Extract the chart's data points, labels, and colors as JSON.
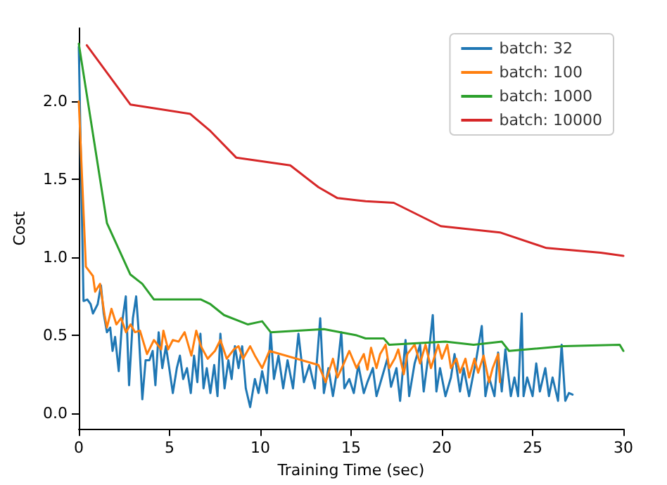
{
  "chart_data": {
    "type": "line",
    "xlabel": "Training Time (sec)",
    "ylabel": "Cost",
    "xlim": [
      0,
      30
    ],
    "ylim": [
      -0.1,
      2.47
    ],
    "xticks": [
      0,
      5,
      10,
      15,
      20,
      25,
      30
    ],
    "yticks": [
      {
        "value": 0,
        "label": "0.0"
      },
      {
        "value": 0.5,
        "label": "0.5"
      },
      {
        "value": 1,
        "label": "1.0"
      },
      {
        "value": 1.5,
        "label": "1.5"
      },
      {
        "value": 2,
        "label": "2.0"
      }
    ],
    "grid": false,
    "legend": "top right",
    "marker": "none",
    "line_style": "solid",
    "series": [
      {
        "name": "batch: 32",
        "color": "#1f77b4",
        "x": [
          0,
          0.26,
          0.47,
          0.65,
          0.78,
          1.04,
          1.22,
          1.37,
          1.55,
          1.73,
          1.86,
          2.0,
          2.2,
          2.38,
          2.59,
          2.77,
          2.98,
          3.16,
          3.3,
          3.5,
          3.68,
          3.89,
          4.07,
          4.22,
          4.4,
          4.6,
          4.8,
          4.97,
          5.18,
          5.4,
          5.57,
          5.75,
          5.96,
          6.17,
          6.35,
          6.53,
          6.7,
          6.87,
          7.05,
          7.25,
          7.46,
          7.64,
          7.8,
          8.03,
          8.24,
          8.42,
          8.6,
          8.8,
          9.0,
          9.2,
          9.44,
          9.7,
          9.9,
          10.1,
          10.36,
          10.57,
          10.75,
          11.0,
          11.26,
          11.5,
          11.8,
          12.1,
          12.4,
          12.7,
          13.0,
          13.3,
          13.5,
          13.75,
          14.0,
          14.25,
          14.46,
          14.63,
          14.9,
          15.15,
          15.4,
          15.7,
          15.9,
          16.2,
          16.4,
          16.7,
          17.0,
          17.2,
          17.5,
          17.7,
          18.0,
          18.2,
          18.5,
          18.8,
          19.0,
          19.3,
          19.5,
          19.7,
          19.9,
          20.2,
          20.5,
          20.7,
          21.0,
          21.2,
          21.5,
          21.7,
          21.9,
          22.2,
          22.4,
          22.6,
          22.9,
          23.1,
          23.3,
          23.5,
          23.8,
          24.0,
          24.2,
          24.4,
          24.5,
          24.7,
          25.0,
          25.2,
          25.4,
          25.7,
          25.9,
          26.1,
          26.4,
          26.6,
          26.8,
          27.0,
          27.2
        ],
        "values": [
          2.35,
          0.72,
          0.73,
          0.7,
          0.64,
          0.7,
          0.82,
          0.64,
          0.52,
          0.55,
          0.4,
          0.49,
          0.27,
          0.58,
          0.75,
          0.18,
          0.61,
          0.75,
          0.52,
          0.09,
          0.34,
          0.34,
          0.4,
          0.18,
          0.52,
          0.29,
          0.43,
          0.3,
          0.13,
          0.29,
          0.37,
          0.22,
          0.29,
          0.13,
          0.37,
          0.2,
          0.51,
          0.16,
          0.29,
          0.13,
          0.31,
          0.11,
          0.51,
          0.16,
          0.34,
          0.22,
          0.43,
          0.29,
          0.43,
          0.16,
          0.04,
          0.22,
          0.13,
          0.27,
          0.13,
          0.52,
          0.22,
          0.37,
          0.16,
          0.34,
          0.16,
          0.51,
          0.2,
          0.31,
          0.16,
          0.61,
          0.13,
          0.29,
          0.11,
          0.29,
          0.52,
          0.16,
          0.22,
          0.13,
          0.31,
          0.13,
          0.2,
          0.29,
          0.11,
          0.23,
          0.35,
          0.17,
          0.29,
          0.08,
          0.47,
          0.11,
          0.32,
          0.44,
          0.14,
          0.41,
          0.63,
          0.14,
          0.29,
          0.11,
          0.23,
          0.38,
          0.14,
          0.29,
          0.11,
          0.23,
          0.35,
          0.56,
          0.11,
          0.23,
          0.11,
          0.39,
          0.14,
          0.41,
          0.11,
          0.23,
          0.11,
          0.64,
          0.11,
          0.23,
          0.11,
          0.32,
          0.14,
          0.29,
          0.11,
          0.23,
          0.08,
          0.44,
          0.08,
          0.13,
          0.12
        ]
      },
      {
        "name": "batch: 100",
        "color": "#ff7f0e",
        "x": [
          0,
          0.39,
          0.78,
          0.9,
          1.17,
          1.42,
          1.55,
          1.8,
          2.07,
          2.33,
          2.6,
          2.85,
          3.1,
          3.37,
          3.76,
          4.14,
          4.54,
          4.66,
          4.92,
          5.18,
          5.5,
          5.83,
          6.2,
          6.47,
          6.73,
          7.1,
          7.5,
          7.8,
          8.15,
          8.54,
          8.8,
          9.05,
          9.44,
          9.7,
          10.1,
          10.5,
          13.2,
          13.6,
          14.0,
          14.25,
          14.6,
          14.9,
          15.3,
          15.7,
          15.9,
          16.1,
          16.4,
          16.6,
          16.9,
          17.1,
          17.4,
          17.6,
          17.9,
          18.1,
          18.5,
          18.8,
          19.1,
          19.4,
          19.8,
          20.0,
          20.3,
          20.5,
          20.8,
          21.0,
          21.3,
          21.5,
          21.8,
          22.0,
          22.3,
          22.6,
          22.8,
          23.1,
          23.2
        ],
        "values": [
          2.0,
          0.94,
          0.88,
          0.78,
          0.83,
          0.63,
          0.55,
          0.67,
          0.57,
          0.61,
          0.52,
          0.57,
          0.52,
          0.53,
          0.38,
          0.47,
          0.41,
          0.53,
          0.41,
          0.47,
          0.46,
          0.52,
          0.37,
          0.53,
          0.43,
          0.35,
          0.4,
          0.47,
          0.35,
          0.41,
          0.43,
          0.35,
          0.43,
          0.37,
          0.29,
          0.4,
          0.31,
          0.2,
          0.35,
          0.23,
          0.32,
          0.4,
          0.29,
          0.38,
          0.28,
          0.42,
          0.29,
          0.38,
          0.44,
          0.29,
          0.35,
          0.41,
          0.25,
          0.38,
          0.44,
          0.32,
          0.44,
          0.29,
          0.44,
          0.35,
          0.44,
          0.29,
          0.35,
          0.26,
          0.35,
          0.23,
          0.35,
          0.26,
          0.37,
          0.2,
          0.29,
          0.38,
          0.2
        ]
      },
      {
        "name": "batch: 1000",
        "color": "#2ca02c",
        "x": [
          0,
          1.55,
          2.84,
          3.5,
          4.14,
          6.73,
          7.25,
          8.0,
          9.32,
          10.1,
          10.57,
          13.5,
          15.3,
          15.8,
          16.8,
          17.1,
          20.2,
          21.75,
          23.3,
          23.7,
          26.7,
          29.8,
          30
        ],
        "values": [
          2.37,
          1.22,
          0.89,
          0.83,
          0.73,
          0.73,
          0.7,
          0.63,
          0.57,
          0.59,
          0.52,
          0.54,
          0.5,
          0.48,
          0.48,
          0.44,
          0.46,
          0.44,
          0.46,
          0.4,
          0.43,
          0.44,
          0.4
        ]
      },
      {
        "name": "batch: 10000",
        "color": "#d62728",
        "x": [
          0.44,
          2.84,
          6.14,
          7.25,
          8.67,
          11.65,
          13.2,
          14.25,
          15.8,
          17.35,
          19.94,
          23.2,
          25.76,
          28.75,
          30
        ],
        "values": [
          2.36,
          1.98,
          1.92,
          1.81,
          1.64,
          1.59,
          1.45,
          1.38,
          1.36,
          1.35,
          1.2,
          1.16,
          1.06,
          1.03,
          1.01
        ]
      }
    ]
  }
}
